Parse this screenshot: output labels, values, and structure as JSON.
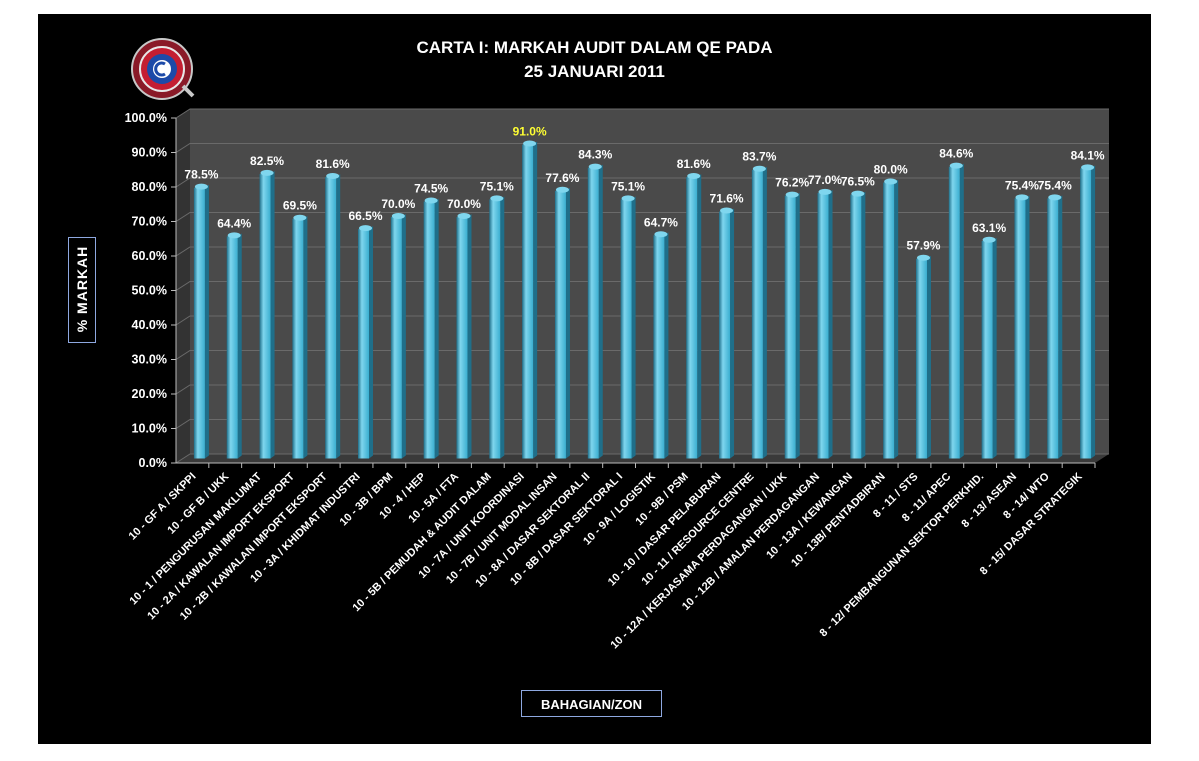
{
  "chart_data": {
    "type": "bar",
    "title_line1": "CARTA I: MARKAH AUDIT DALAM QE PADA",
    "title_line2": "25 JANUARI 2011",
    "xlabel": "BAHAGIAN/ZON",
    "ylabel": "% MARKAH",
    "ylim": [
      0,
      100
    ],
    "yticks": [
      "0.0%",
      "10.0%",
      "20.0%",
      "30.0%",
      "40.0%",
      "50.0%",
      "60.0%",
      "70.0%",
      "80.0%",
      "90.0%",
      "100.0%"
    ],
    "categories": [
      "10 - GF A / SKPPI",
      "10 - GF B / UKK",
      "10 - 1 / PENGURUSAN MAKLUMAT",
      "10 - 2A / KAWALAN IMPORT EKSPORT",
      "10 - 2B / KAWALAN IMPORT EKSPORT",
      "10 - 3A / KHIDMAT INDUSTRI",
      "10 - 3B / BPM",
      "10 - 4 / HEP",
      "10 - 5A / FTA",
      "10 - 5B / PEMUDAH & AUDIT DALAM",
      "10 - 7A / UNIT KOORDINASI",
      "10 - 7B / UNIT MODAL INSAN",
      "10 - 8A / DASAR SEKTORAL II",
      "10 - 8B / DASAR SEKTORAL I",
      "10 - 9A / LOGISTIK",
      "10 - 9B / PSM",
      "10 - 10 / DASAR PELABURAN",
      "10 - 11 / RESOURCE CENTRE",
      "10 - 12A / KERJASAMA PERDAGANGAN / UKK",
      "10 - 12B / AMALAN PERDAGANGAN",
      "10 - 13A / KEWANGAN",
      "10 - 13B/ PENTADBIRAN",
      "8 - 11 / STS",
      "8 - 11/ APEC",
      "8 - 12/ PEMBANGUNAN SEKTOR PERKHID.",
      "8 - 13/ ASEAN",
      "8 - 14/ WTO",
      "8 - 15/ DASAR STRATEGIK"
    ],
    "values": [
      78.5,
      64.4,
      82.5,
      69.5,
      81.6,
      66.5,
      70.0,
      74.5,
      70.0,
      75.1,
      91.0,
      77.6,
      84.3,
      75.1,
      64.7,
      81.6,
      71.6,
      83.7,
      76.2,
      77.0,
      76.5,
      80.0,
      57.9,
      84.6,
      63.1,
      75.4,
      75.4,
      84.1
    ],
    "data_labels": [
      "78.5%",
      "64.4%",
      "82.5%",
      "69.5%",
      "81.6%",
      "66.5%",
      "70.0%",
      "74.5%",
      "70.0%",
      "75.1%",
      "91.0%",
      "77.6%",
      "84.3%",
      "75.1%",
      "64.7%",
      "81.6%",
      "71.6%",
      "83.7%",
      "76.2%",
      "77.0%",
      "76.5%",
      "80.0%",
      "57.9%",
      "84.6%",
      "63.1%",
      "75.4%",
      "75.4%",
      "84.1%"
    ],
    "highlight_index": 10,
    "colors": {
      "background": "#000000",
      "bar": "#3aaed0",
      "bar_top": "#7fd6ee",
      "bar_dark": "#1f6f8a",
      "wall": "#4a4a4a",
      "floor": "#3a3a3a",
      "text": "#ffffff",
      "highlight": "#ffff33",
      "label_border": "#8ea8e0"
    },
    "grid": true,
    "legend": "none"
  }
}
